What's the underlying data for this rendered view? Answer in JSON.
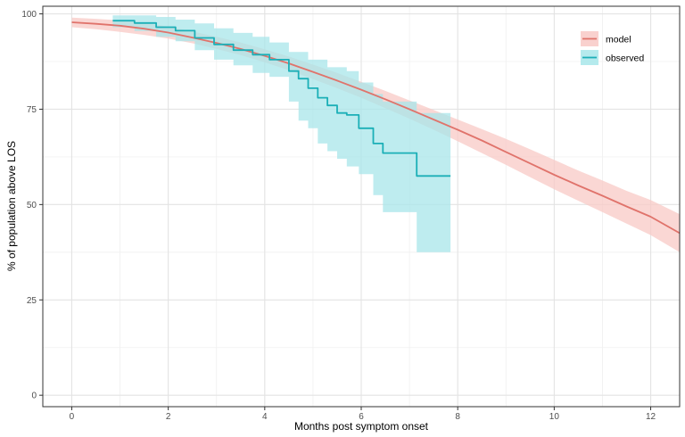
{
  "chart_data": {
    "type": "line",
    "title": "",
    "xlabel": "Months post symptom onset",
    "ylabel": "% of population above LOS",
    "xlim": [
      -0.6,
      12.6
    ],
    "ylim": [
      -3,
      102
    ],
    "x_ticks": [
      0,
      2,
      4,
      6,
      8,
      10,
      12
    ],
    "y_ticks": [
      0,
      25,
      50,
      75,
      100
    ],
    "x_minor_ticks": [
      1,
      3,
      5,
      7,
      9,
      11
    ],
    "y_minor_ticks": [
      12.5,
      37.5,
      62.5,
      87.5
    ],
    "grid": true,
    "legend_position": "top-right",
    "series": [
      {
        "name": "model",
        "color": "#E0736B",
        "ribbon_color": "#F8C9C6",
        "style": "smooth",
        "x": [
          0,
          0.5,
          1,
          1.5,
          2,
          2.5,
          3,
          3.5,
          4,
          4.5,
          5,
          5.5,
          6,
          6.5,
          7,
          7.5,
          8,
          8.5,
          9,
          9.5,
          10,
          10.5,
          11,
          11.5,
          12,
          12.6
        ],
        "y": [
          97.8,
          97.4,
          96.9,
          96.1,
          95.1,
          93.8,
          92.4,
          90.8,
          89.0,
          87.0,
          84.8,
          82.5,
          80.1,
          77.6,
          75.0,
          72.3,
          69.6,
          66.8,
          63.8,
          60.8,
          57.8,
          55.0,
          52.3,
          49.5,
          46.8,
          42.5
        ],
        "lower": [
          96.5,
          96.0,
          95.3,
          94.5,
          93.5,
          92.3,
          90.8,
          89.2,
          87.3,
          85.2,
          82.9,
          80.5,
          78.0,
          75.3,
          72.5,
          69.6,
          66.6,
          63.5,
          60.4,
          57.2,
          54.0,
          51.0,
          48.0,
          45.0,
          42.0,
          37.5
        ],
        "upper": [
          99.0,
          98.7,
          98.3,
          97.6,
          96.7,
          95.4,
          94.0,
          92.5,
          90.7,
          88.8,
          86.7,
          84.5,
          82.2,
          79.8,
          77.3,
          74.8,
          72.3,
          69.8,
          67.2,
          64.5,
          61.7,
          58.9,
          56.3,
          53.6,
          51.2,
          47.5
        ]
      },
      {
        "name": "observed",
        "color": "#1BAFB7",
        "ribbon_color": "#A8E6EA",
        "style": "step",
        "x": [
          0.85,
          1.3,
          1.75,
          2.15,
          2.55,
          2.95,
          3.35,
          3.75,
          4.1,
          4.5,
          4.7,
          4.9,
          5.1,
          5.3,
          5.5,
          5.7,
          5.95,
          6.25,
          6.45,
          6.65,
          7.15,
          7.85
        ],
        "y": [
          98.2,
          97.6,
          96.5,
          95.6,
          93.7,
          92.0,
          90.5,
          89.3,
          88.0,
          85.0,
          83.0,
          80.5,
          78.0,
          76.0,
          74.0,
          73.5,
          70.0,
          66.0,
          63.5,
          63.5,
          57.5,
          57.5
        ],
        "lower": [
          96.5,
          95.5,
          94.0,
          92.8,
          90.5,
          88.0,
          86.5,
          84.5,
          83.5,
          77.0,
          72.0,
          70.0,
          66.0,
          64.0,
          62.0,
          60.0,
          58.0,
          52.5,
          48.0,
          48.0,
          37.5,
          37.5
        ],
        "upper": [
          99.6,
          99.6,
          99.2,
          98.5,
          97.5,
          96.2,
          95.0,
          94.0,
          92.5,
          90.0,
          90.0,
          88.0,
          88.0,
          86.0,
          86.0,
          85.0,
          82.0,
          79.0,
          77.0,
          77.0,
          74.0,
          74.0
        ]
      }
    ]
  }
}
